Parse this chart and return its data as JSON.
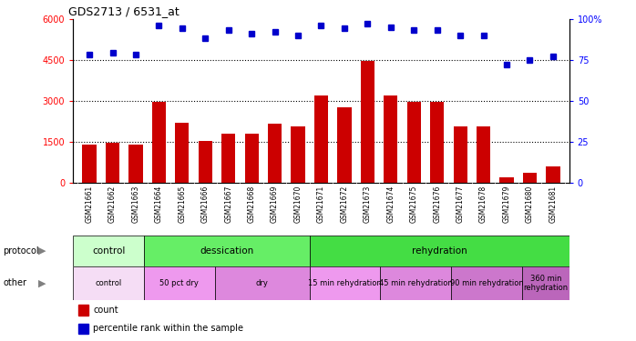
{
  "title": "GDS2713 / 6531_at",
  "samples": [
    "GSM21661",
    "GSM21662",
    "GSM21663",
    "GSM21664",
    "GSM21665",
    "GSM21666",
    "GSM21667",
    "GSM21668",
    "GSM21669",
    "GSM21670",
    "GSM21671",
    "GSM21672",
    "GSM21673",
    "GSM21674",
    "GSM21675",
    "GSM21676",
    "GSM21677",
    "GSM21678",
    "GSM21679",
    "GSM21680",
    "GSM21681"
  ],
  "counts": [
    1400,
    1450,
    1380,
    2950,
    2200,
    1520,
    1800,
    1780,
    2150,
    2050,
    3200,
    2750,
    4450,
    3200,
    2950,
    2950,
    2050,
    2050,
    200,
    350,
    600
  ],
  "percentile": [
    78,
    79,
    78,
    96,
    94,
    88,
    93,
    91,
    92,
    90,
    96,
    94,
    97,
    95,
    93,
    93,
    90,
    90,
    72,
    75,
    77
  ],
  "bar_color": "#cc0000",
  "dot_color": "#0000cc",
  "ylim_left": [
    0,
    6000
  ],
  "ylim_right": [
    0,
    100
  ],
  "yticks_left": [
    0,
    1500,
    3000,
    4500,
    6000
  ],
  "yticks_right": [
    0,
    25,
    50,
    75,
    100
  ],
  "protocol_groups": [
    {
      "label": "control",
      "start": 0,
      "end": 3,
      "color": "#ccffcc"
    },
    {
      "label": "dessication",
      "start": 3,
      "end": 10,
      "color": "#66ee66"
    },
    {
      "label": "rehydration",
      "start": 10,
      "end": 21,
      "color": "#44dd44"
    }
  ],
  "other_groups": [
    {
      "label": "control",
      "start": 0,
      "end": 3,
      "color": "#f5ddf5"
    },
    {
      "label": "50 pct dry",
      "start": 3,
      "end": 6,
      "color": "#ee99ee"
    },
    {
      "label": "dry",
      "start": 6,
      "end": 10,
      "color": "#dd88dd"
    },
    {
      "label": "15 min rehydration",
      "start": 10,
      "end": 13,
      "color": "#ee99ee"
    },
    {
      "label": "45 min rehydration",
      "start": 13,
      "end": 16,
      "color": "#dd88dd"
    },
    {
      "label": "90 min rehydration",
      "start": 16,
      "end": 19,
      "color": "#cc77cc"
    },
    {
      "label": "360 min\nrehydration",
      "start": 19,
      "end": 21,
      "color": "#bb66bb"
    }
  ],
  "xticklabel_bg": "#d8d8d8",
  "grid_color": "#888888",
  "label_left": "protocol",
  "label_other": "other"
}
